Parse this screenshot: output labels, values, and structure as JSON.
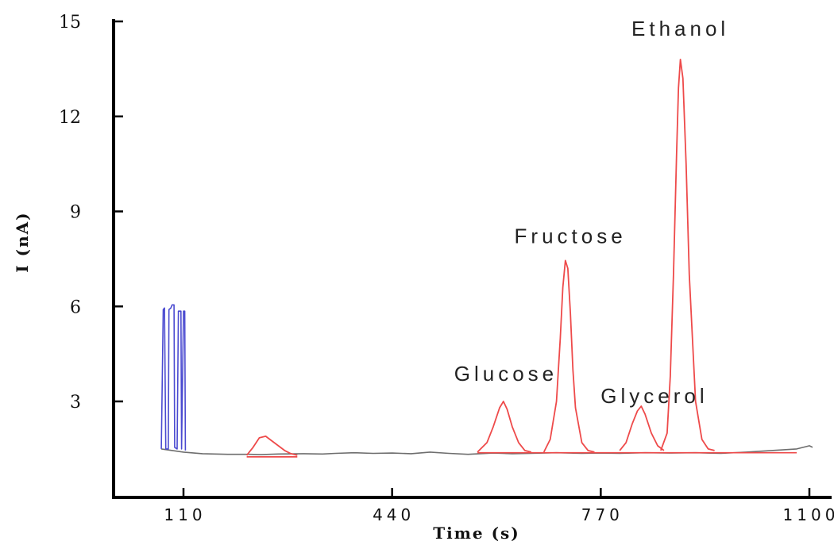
{
  "chart_data": {
    "type": "line",
    "xlabel": "Time (s)",
    "ylabel": "I (nA)",
    "xlim": [
      70,
      1110
    ],
    "ylim": [
      -0.8,
      15
    ],
    "x_ticks": [
      110,
      440,
      770,
      1100
    ],
    "y_ticks": [
      3,
      6,
      9,
      12,
      15
    ],
    "x_tick_labels": [
      "110",
      "440",
      "770",
      "1100"
    ],
    "y_tick_labels": [
      "3",
      "6",
      "9",
      "12",
      "15"
    ],
    "grid": false,
    "colors": {
      "baseline": "#6e6e6e",
      "pulses": "#4a4ad0",
      "peaks": "#ee4a4a",
      "axis": "#000000"
    },
    "series": [
      {
        "x": [
          75,
          110,
          140,
          160,
          180,
          200,
          215,
          232,
          260,
          300,
          330,
          350,
          380,
          410,
          440,
          470,
          500,
          530,
          560,
          600,
          630,
          660,
          700,
          740,
          770,
          800,
          840,
          880,
          920,
          960,
          1000,
          1040,
          1080,
          1100,
          1105
        ],
        "y": [
          1.5,
          1.4,
          1.35,
          1.34,
          1.33,
          1.33,
          1.33,
          1.32,
          1.34,
          1.35,
          1.34,
          1.36,
          1.38,
          1.36,
          1.37,
          1.35,
          1.4,
          1.36,
          1.33,
          1.37,
          1.35,
          1.36,
          1.38,
          1.36,
          1.37,
          1.36,
          1.38,
          1.37,
          1.38,
          1.36,
          1.4,
          1.45,
          1.5,
          1.6,
          1.55
        ]
      },
      {
        "x": [
          75,
          78,
          80,
          82,
          86,
          87,
          90,
          92,
          95,
          96,
          100,
          102,
          106,
          107,
          110,
          112,
          113
        ],
        "y": [
          1.5,
          5.9,
          5.95,
          1.5,
          1.5,
          5.9,
          5.95,
          6.05,
          6.05,
          1.55,
          1.5,
          5.85,
          5.85,
          1.5,
          5.85,
          5.85,
          1.45
        ]
      },
      {
        "x": [
          210,
          220,
          230,
          240,
          250,
          260,
          270,
          280,
          290
        ],
        "y": [
          1.3,
          1.55,
          1.85,
          1.9,
          1.75,
          1.6,
          1.45,
          1.35,
          1.3
        ]
      },
      {
        "x": [
          210,
          290
        ],
        "y": [
          1.25,
          1.25
        ]
      },
      {
        "x": [
          575,
          590,
          600,
          610,
          616,
          622,
          630,
          640,
          650,
          660
        ],
        "y": [
          1.4,
          1.7,
          2.2,
          2.8,
          3.0,
          2.75,
          2.2,
          1.7,
          1.45,
          1.4
        ]
      },
      {
        "x": [
          680,
          690,
          700,
          706,
          710,
          714,
          718,
          722,
          726,
          730,
          740,
          750,
          760
        ],
        "y": [
          1.4,
          1.8,
          3.0,
          5.0,
          6.6,
          7.45,
          7.2,
          5.8,
          4.0,
          2.8,
          1.7,
          1.45,
          1.4
        ]
      },
      {
        "x": [
          800,
          810,
          820,
          828,
          834,
          840,
          850,
          860,
          870
        ],
        "y": [
          1.45,
          1.7,
          2.3,
          2.7,
          2.85,
          2.6,
          2.0,
          1.6,
          1.45
        ]
      },
      {
        "x": [
          865,
          875,
          880,
          885,
          890,
          893,
          896,
          900,
          905,
          910,
          920,
          930,
          940,
          950
        ],
        "y": [
          1.45,
          2.0,
          3.8,
          7.0,
          10.8,
          12.9,
          13.8,
          13.2,
          10.5,
          7.0,
          3.0,
          1.8,
          1.5,
          1.45
        ]
      },
      {
        "x": [
          575,
          1080
        ],
        "y": [
          1.38,
          1.38
        ]
      }
    ],
    "annotations": [
      {
        "text": "Glucose",
        "x": 620,
        "y": 3.65
      },
      {
        "text": "Fructose",
        "x": 722,
        "y": 8.0
      },
      {
        "text": "Glycerol",
        "x": 855,
        "y": 2.95
      },
      {
        "text": "Ethanol",
        "x": 896,
        "y": 14.55
      }
    ]
  }
}
